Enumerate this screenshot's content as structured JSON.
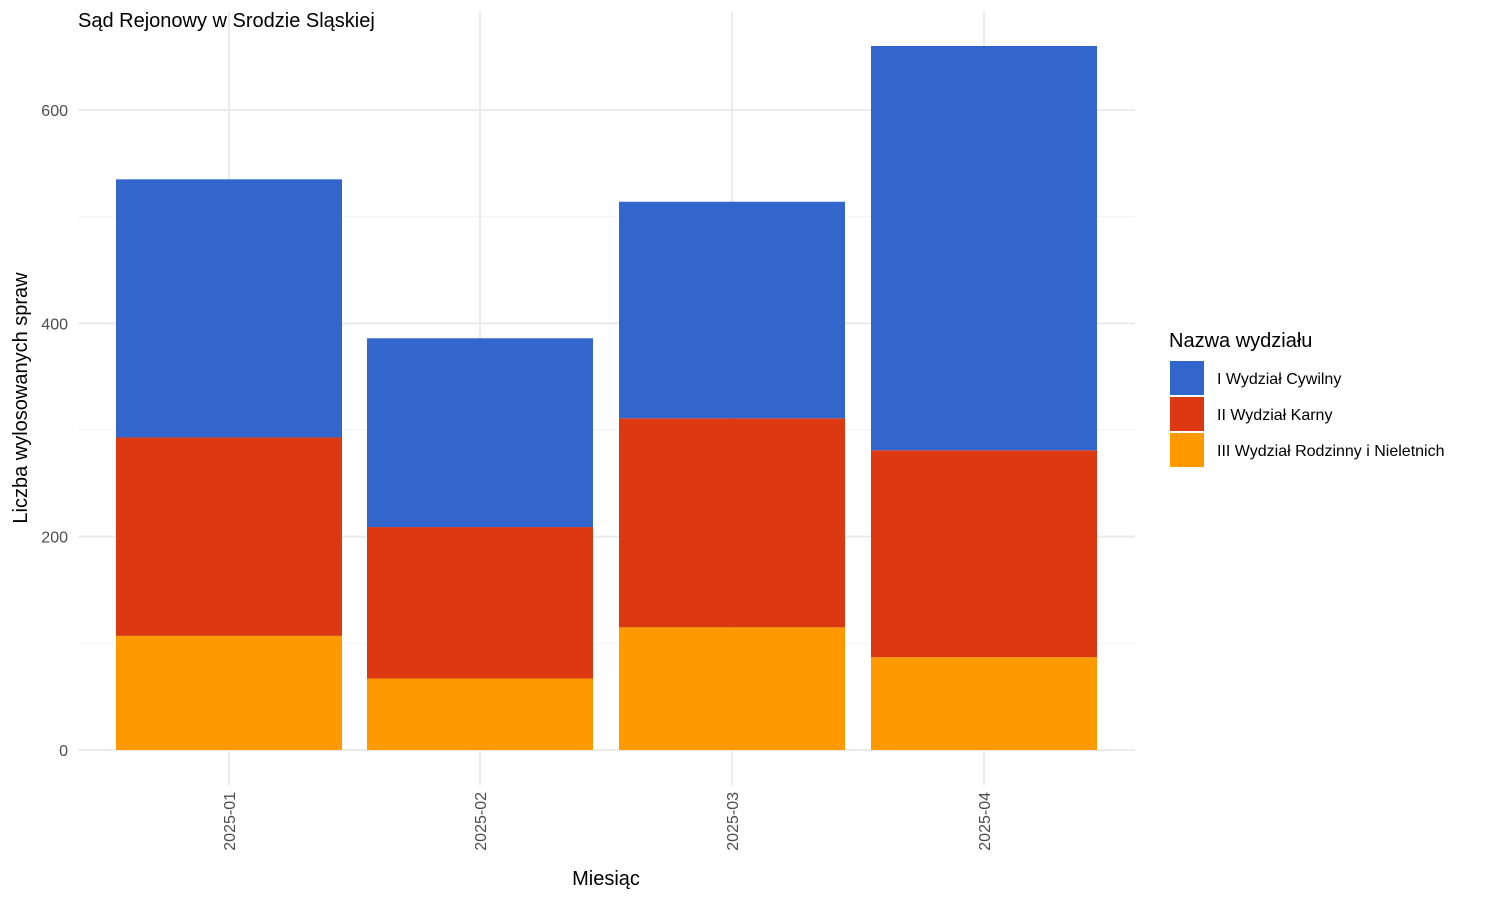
{
  "chart_data": {
    "type": "bar",
    "stacked": true,
    "title": "Sąd Rejonowy w Srodzie Sląskiej",
    "xlabel": "Miesiąc",
    "ylabel": "Liczba wylosowanych spraw",
    "categories": [
      "2025-01",
      "2025-02",
      "2025-03",
      "2025-04"
    ],
    "yticks": [
      0,
      200,
      400,
      600
    ],
    "ylim": [
      0,
      660
    ],
    "grid": true,
    "legend": {
      "title": "Nazwa wydziału",
      "position": "right"
    },
    "series": [
      {
        "name": "III Wydział Rodzinny i Nieletnich",
        "color": "#FF9900",
        "values": [
          107,
          67,
          115,
          87
        ]
      },
      {
        "name": "II Wydział Karny",
        "color": "#DC3912",
        "values": [
          186,
          142,
          196,
          194
        ]
      },
      {
        "name": "I Wydział Cywilny",
        "color": "#3366CC",
        "values": [
          242,
          177,
          203,
          379
        ]
      }
    ],
    "legend_order": [
      "I Wydział Cywilny",
      "II Wydział Karny",
      "III Wydział Rodzinny i Nieletnich"
    ]
  }
}
